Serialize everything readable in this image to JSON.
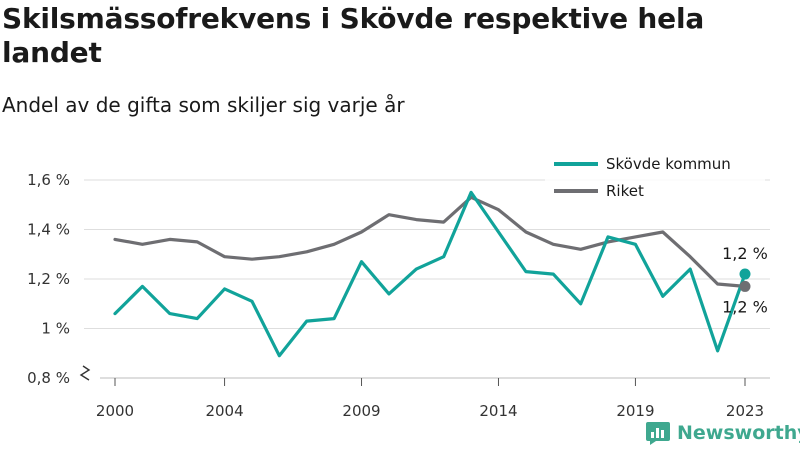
{
  "colors": {
    "skovde": "#11a39a",
    "riket": "#6e6e72",
    "grid": "#dedede",
    "brand": "#3fa88f"
  },
  "chart_data": {
    "type": "line",
    "title": "Skilsmässofrekvens i Skövde respektive hela landet",
    "subtitle": "Andel av de gifta som skiljer sig varje år",
    "x": [
      2000,
      2001,
      2002,
      2003,
      2004,
      2005,
      2006,
      2007,
      2008,
      2009,
      2010,
      2011,
      2012,
      2013,
      2014,
      2015,
      2016,
      2017,
      2018,
      2019,
      2020,
      2021,
      2022,
      2023
    ],
    "series": [
      {
        "name": "Skövde kommun",
        "color": "#11a39a",
        "values": [
          1.06,
          1.17,
          1.06,
          1.04,
          1.16,
          1.11,
          0.89,
          1.03,
          1.04,
          1.27,
          1.14,
          1.24,
          1.29,
          1.55,
          1.39,
          1.23,
          1.22,
          1.1,
          1.37,
          1.34,
          1.13,
          1.24,
          0.91,
          1.22
        ]
      },
      {
        "name": "Riket",
        "color": "#6e6e72",
        "values": [
          1.36,
          1.34,
          1.36,
          1.35,
          1.29,
          1.28,
          1.29,
          1.31,
          1.34,
          1.39,
          1.46,
          1.44,
          1.43,
          1.53,
          1.48,
          1.39,
          1.34,
          1.32,
          1.35,
          1.37,
          1.39,
          1.29,
          1.18,
          1.17
        ]
      }
    ],
    "ylim": [
      0.8,
      1.6
    ],
    "yticks": [
      0.8,
      1.0,
      1.2,
      1.4,
      1.6
    ],
    "ytick_labels": [
      "0,8 %",
      "1 %",
      "1,2 %",
      "1,4 %",
      "1,6 %"
    ],
    "xlim": [
      1999.5,
      2023.9
    ],
    "xticks": [
      2000,
      2004,
      2009,
      2014,
      2019,
      2023
    ],
    "xtick_labels": [
      "2000",
      "2004",
      "2009",
      "2014",
      "2019",
      "2023"
    ],
    "end_labels": [
      "1,2 %",
      "1,2 %"
    ],
    "legend": "top-right",
    "grid": true,
    "broken_y_axis": true
  },
  "brand": {
    "name": "Newsworthy",
    "icon": "bar-chart-logo-icon"
  }
}
